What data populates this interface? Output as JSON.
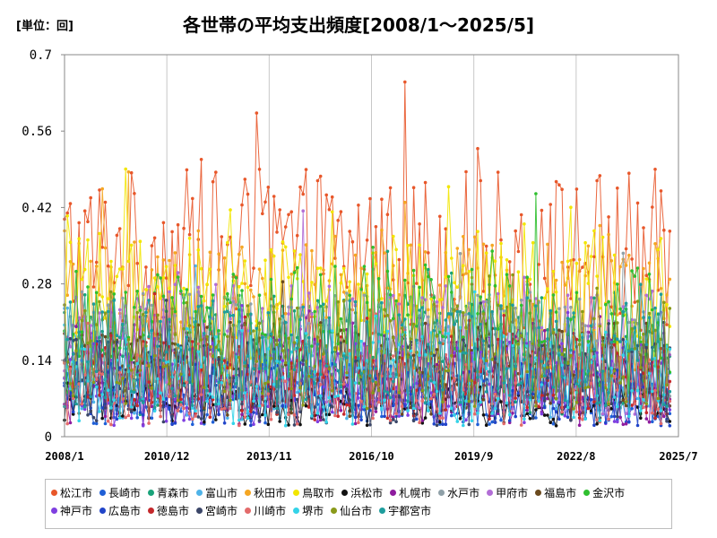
{
  "chart_data": {
    "type": "line",
    "title": "各世帯の平均支出頻度[2008/1～2025/5]",
    "unit_label": "[単位：回]",
    "xlabel": "",
    "ylabel": "",
    "ylim": [
      0,
      0.7
    ],
    "y_ticks": [
      "0",
      "0.14",
      "0.28",
      "0.42",
      "0.56",
      "0.7"
    ],
    "x_ticks": [
      "2008/1",
      "2010/12",
      "2013/11",
      "2016/10",
      "2019/9",
      "2022/8",
      "2025/7"
    ],
    "x_range": [
      "2008/1",
      "2025/7"
    ],
    "grid": "vertical",
    "legend_position": "bottom",
    "series": [
      {
        "name": "松江市",
        "color": "#e8572a",
        "base": 0.33,
        "amp": 0.16,
        "lo": 0.15,
        "hi": 0.65
      },
      {
        "name": "長崎市",
        "color": "#1f5fd6",
        "base": 0.07,
        "amp": 0.05,
        "lo": 0.0,
        "hi": 0.18
      },
      {
        "name": "青森市",
        "color": "#1aa37a",
        "base": 0.15,
        "amp": 0.11,
        "lo": 0.0,
        "hi": 0.46
      },
      {
        "name": "富山市",
        "color": "#4fb3e8",
        "base": 0.12,
        "amp": 0.09,
        "lo": 0.0,
        "hi": 0.38
      },
      {
        "name": "秋田市",
        "color": "#f5a623",
        "base": 0.24,
        "amp": 0.14,
        "lo": 0.05,
        "hi": 0.57
      },
      {
        "name": "鳥取市",
        "color": "#f2e600",
        "base": 0.25,
        "amp": 0.13,
        "lo": 0.05,
        "hi": 0.61
      },
      {
        "name": "浜松市",
        "color": "#111111",
        "base": 0.06,
        "amp": 0.04,
        "lo": 0.01,
        "hi": 0.18
      },
      {
        "name": "札幌市",
        "color": "#8e1c9e",
        "base": 0.12,
        "amp": 0.1,
        "lo": 0.0,
        "hi": 0.39
      },
      {
        "name": "水戸市",
        "color": "#8fa0a8",
        "base": 0.16,
        "amp": 0.11,
        "lo": 0.0,
        "hi": 0.39
      },
      {
        "name": "甲府市",
        "color": "#b26ed6",
        "base": 0.16,
        "amp": 0.12,
        "lo": 0.0,
        "hi": 0.51
      },
      {
        "name": "福島市",
        "color": "#6b4a1e",
        "base": 0.12,
        "amp": 0.09,
        "lo": 0.0,
        "hi": 0.36
      },
      {
        "name": "金沢市",
        "color": "#2fbf2f",
        "base": 0.2,
        "amp": 0.12,
        "lo": 0.02,
        "hi": 0.47
      },
      {
        "name": "神戸市",
        "color": "#7f3fe0",
        "base": 0.1,
        "amp": 0.08,
        "lo": 0.0,
        "hi": 0.33
      },
      {
        "name": "広島市",
        "color": "#2145c9",
        "base": 0.08,
        "amp": 0.06,
        "lo": 0.0,
        "hi": 0.25
      },
      {
        "name": "徳島市",
        "color": "#c4282b",
        "base": 0.11,
        "amp": 0.08,
        "lo": 0.0,
        "hi": 0.32
      },
      {
        "name": "宮崎市",
        "color": "#3b4668",
        "base": 0.1,
        "amp": 0.08,
        "lo": 0.0,
        "hi": 0.3
      },
      {
        "name": "川崎市",
        "color": "#e36b6b",
        "base": 0.09,
        "amp": 0.07,
        "lo": 0.0,
        "hi": 0.28
      },
      {
        "name": "堺市",
        "color": "#33d3e8",
        "base": 0.11,
        "amp": 0.09,
        "lo": 0.0,
        "hi": 0.48
      },
      {
        "name": "仙台市",
        "color": "#8a9a1a",
        "base": 0.15,
        "amp": 0.1,
        "lo": 0.0,
        "hi": 0.4
      },
      {
        "name": "宇都宮市",
        "color": "#1e9d9d",
        "base": 0.15,
        "amp": 0.1,
        "lo": 0.0,
        "hi": 0.4
      }
    ]
  }
}
